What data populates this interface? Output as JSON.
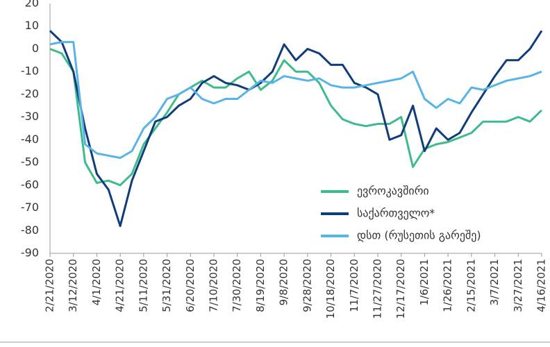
{
  "chart_data": {
    "type": "line",
    "x": [
      "2/21/2020",
      "3/2/2020",
      "3/12/2020",
      "3/22/2020",
      "4/1/2020",
      "4/11/2020",
      "4/21/2020",
      "5/1/2020",
      "5/11/2020",
      "5/21/2020",
      "5/31/2020",
      "6/10/2020",
      "6/20/2020",
      "6/30/2020",
      "7/10/2020",
      "7/20/2020",
      "7/30/2020",
      "8/9/2020",
      "8/19/2020",
      "8/29/2020",
      "9/8/2020",
      "9/18/2020",
      "9/28/2020",
      "10/8/2020",
      "10/18/2020",
      "10/28/2020",
      "11/7/2020",
      "11/17/2020",
      "11/27/2020",
      "12/7/2020",
      "12/17/2020",
      "12/27/2020",
      "1/6/2021",
      "1/16/2021",
      "1/26/2021",
      "2/5/2021",
      "2/15/2021",
      "2/25/2021",
      "3/7/2021",
      "3/17/2021",
      "3/27/2021",
      "4/6/2021",
      "4/16/2021"
    ],
    "series": [
      {
        "name": "ევროკავშირი",
        "color": "#3dbb8a",
        "values": [
          0,
          -2,
          -10,
          -50,
          -59,
          -58,
          -60,
          -55,
          -42,
          -35,
          -28,
          -20,
          -17,
          -14,
          -17,
          -17,
          -13,
          -10,
          -18,
          -14,
          -5,
          -10,
          -10,
          -15,
          -25,
          -31,
          -33,
          -34,
          -33,
          -33,
          -30,
          -52,
          -44,
          -42,
          -41,
          -39,
          -37,
          -32,
          -32,
          -32,
          -30,
          -32,
          -27
        ]
      },
      {
        "name": "საქართველო*",
        "color": "#0f3c7a",
        "values": [
          8,
          3,
          -10,
          -35,
          -55,
          -62,
          -78,
          -58,
          -45,
          -32,
          -30,
          -25,
          -22,
          -15,
          -12,
          -15,
          -16,
          -18,
          -15,
          -10,
          2,
          -5,
          0,
          -2,
          -7,
          -7,
          -15,
          -17,
          -20,
          -40,
          -38,
          -25,
          -45,
          -35,
          -40,
          -37,
          -28,
          -20,
          -12,
          -5,
          -5,
          0,
          8
        ]
      },
      {
        "name": "დსთ (რუსეთის გარეშე)",
        "color": "#58b4e6",
        "values": [
          2,
          3,
          3,
          -42,
          -46,
          -47,
          -48,
          -45,
          -35,
          -30,
          -22,
          -20,
          -17,
          -22,
          -24,
          -22,
          -22,
          -18,
          -14,
          -15,
          -12,
          -13,
          -14,
          -13,
          -16,
          -17,
          -17,
          -16,
          -15,
          -14,
          -13,
          -10,
          -22,
          -26,
          -22,
          -24,
          -17,
          -18,
          -16,
          -14,
          -13,
          -12,
          -10
        ]
      }
    ],
    "xlim": [
      "2/21/2020",
      "4/16/2021"
    ],
    "xticks": [
      "2/21/2020",
      "3/12/2020",
      "4/1/2020",
      "4/21/2020",
      "5/11/2020",
      "5/31/2020",
      "6/20/2020",
      "7/10/2020",
      "7/30/2020",
      "8/19/2020",
      "9/8/2020",
      "9/28/2020",
      "10/18/2020",
      "11/7/2020",
      "11/27/2020",
      "12/17/2020",
      "1/6/2021",
      "1/26/2021",
      "2/15/2021",
      "3/7/2021",
      "3/27/2021",
      "4/16/2021"
    ],
    "ylim": [
      -90,
      20
    ],
    "yticks": [
      -90,
      -80,
      -70,
      -60,
      -50,
      -40,
      -30,
      -20,
      -10,
      0,
      10,
      20
    ],
    "legend": "lower right"
  }
}
